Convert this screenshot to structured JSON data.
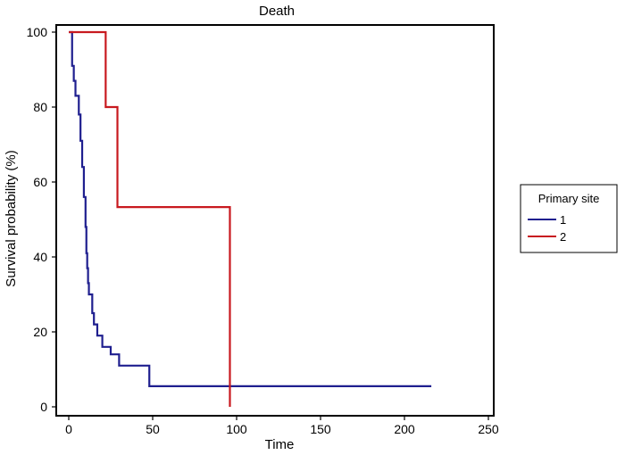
{
  "chart_data": {
    "type": "line",
    "title": "Death",
    "xlabel": "Time",
    "ylabel": "Survival probability (%)",
    "xlim": [
      0,
      250
    ],
    "ylim": [
      0,
      100
    ],
    "xticks": [
      0,
      50,
      100,
      150,
      200,
      250
    ],
    "yticks": [
      0,
      20,
      40,
      60,
      80,
      100
    ],
    "grid": false,
    "step": true,
    "legend": {
      "title": "Primary site",
      "position": "right"
    },
    "series": [
      {
        "name": "1",
        "color": "#1f1f8f",
        "x": [
          0,
          2,
          3,
          4,
          6,
          7,
          8,
          9,
          10,
          10.5,
          11,
          11.5,
          12,
          13,
          14,
          15,
          16,
          17,
          18,
          20,
          25,
          30,
          36,
          48,
          216
        ],
        "y": [
          100,
          91,
          87,
          83,
          78,
          71,
          64,
          56,
          48,
          41,
          37,
          33,
          30,
          30,
          25,
          22,
          22,
          19,
          19,
          16,
          14,
          11,
          11,
          5.5,
          5.5
        ]
      },
      {
        "name": "2",
        "color": "#c8191f",
        "x": [
          0,
          22,
          29,
          96,
          96
        ],
        "y": [
          100,
          80,
          53.3,
          53.3,
          0
        ]
      }
    ]
  }
}
